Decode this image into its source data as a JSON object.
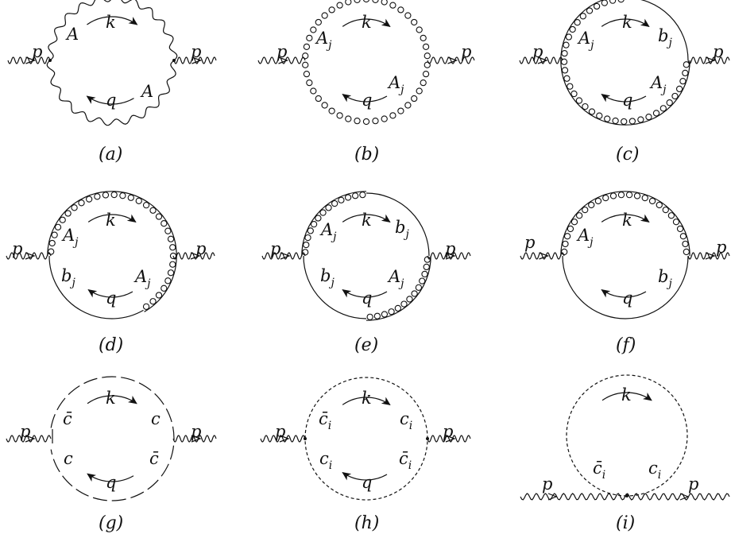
{
  "colors": {
    "ink": "#111111",
    "background": "#ffffff"
  },
  "diagrams": [
    {
      "caption": "(a)",
      "labels": {
        "p_left": "p",
        "p_right": "p",
        "k": "k",
        "q": "q",
        "top_left": "A",
        "bottom_right": "A"
      }
    },
    {
      "caption": "(b)",
      "labels": {
        "p_left": "p",
        "p_right": "p",
        "k": "k",
        "q": "q",
        "top_left": "A",
        "top_left_sub": "j",
        "bottom_right": "A",
        "bottom_right_sub": "j"
      }
    },
    {
      "caption": "(c)",
      "labels": {
        "p_left": "p",
        "p_right": "p",
        "k": "k",
        "q": "q",
        "top_left": "A",
        "top_left_sub": "j",
        "top_right": "b",
        "top_right_sub": "j",
        "bottom_right": "A",
        "bottom_right_sub": "j"
      }
    },
    {
      "caption": "(d)",
      "labels": {
        "p_left": "p",
        "p_right": "p",
        "k": "k",
        "q": "q",
        "top_left": "A",
        "top_left_sub": "j",
        "bottom_left": "b",
        "bottom_left_sub": "j",
        "bottom_right": "A",
        "bottom_right_sub": "j"
      }
    },
    {
      "caption": "(e)",
      "labels": {
        "p_left": "p",
        "p_right": "p",
        "k": "k",
        "q": "q",
        "top_left": "A",
        "top_left_sub": "j",
        "top_right": "b",
        "top_right_sub": "j",
        "bottom_left": "b",
        "bottom_left_sub": "j",
        "bottom_right": "A",
        "bottom_right_sub": "j"
      }
    },
    {
      "caption": "(f)",
      "labels": {
        "p_left": "p",
        "p_right": "p",
        "k": "k",
        "q": "q",
        "top_left": "A",
        "top_left_sub": "j",
        "bottom_right": "b",
        "bottom_right_sub": "j"
      }
    },
    {
      "caption": "(g)",
      "labels": {
        "p_left": "p",
        "p_right": "p",
        "k": "k",
        "q": "q",
        "top_left": "c̄",
        "top_right": "c",
        "bottom_left": "c",
        "bottom_right": "c̄"
      }
    },
    {
      "caption": "(h)",
      "labels": {
        "p_left": "p",
        "p_right": "p",
        "k": "k",
        "q": "q",
        "top_left": "c̄",
        "top_left_sub": "i",
        "top_right": "c",
        "top_right_sub": "i",
        "bottom_left": "c",
        "bottom_left_sub": "i",
        "bottom_right": "c̄",
        "bottom_right_sub": "i"
      }
    },
    {
      "caption": "(i)",
      "labels": {
        "p_left": "p",
        "p_right": "p",
        "k": "k",
        "bottom_left": "c̄",
        "bottom_left_sub": "i",
        "bottom_right": "c",
        "bottom_right_sub": "i"
      }
    }
  ]
}
